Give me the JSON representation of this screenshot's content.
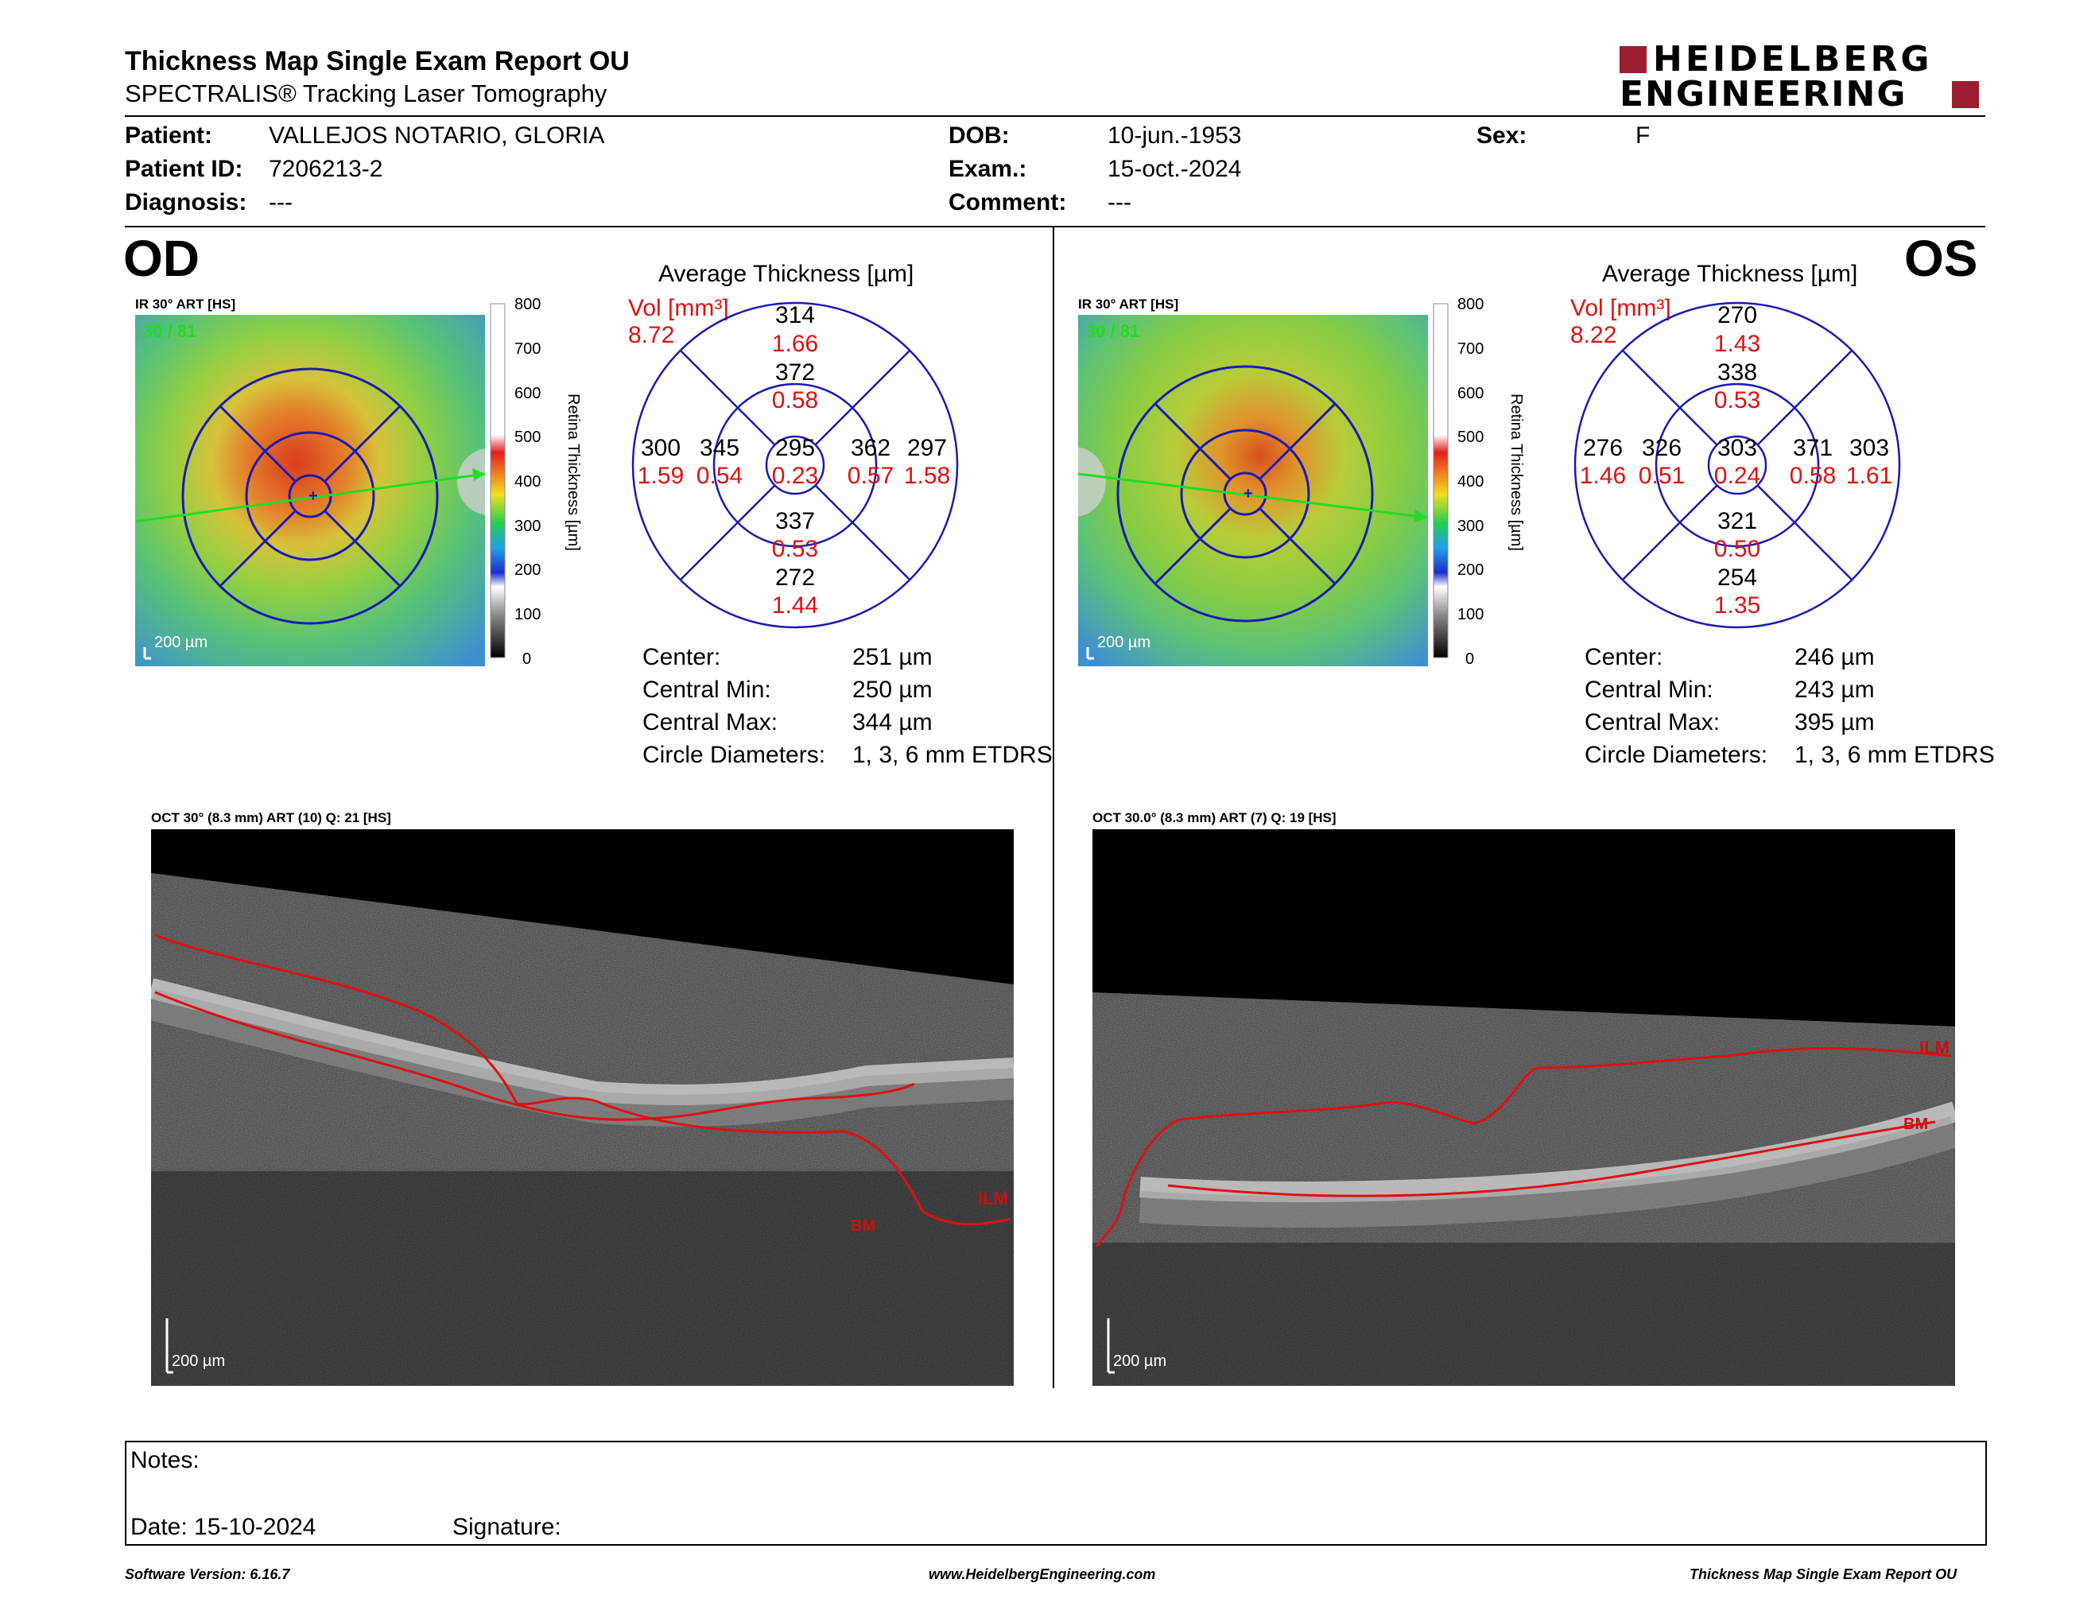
{
  "header": {
    "title": "Thickness Map Single Exam Report OU",
    "subtitle": "SPECTRALIS® Tracking Laser Tomography",
    "logo_line1": "HEIDELBERG",
    "logo_line2": "ENGINEERING",
    "logo_color": "#9b1c2e"
  },
  "patient": {
    "patient_label": "Patient:",
    "patient_value": "VALLEJOS NOTARIO, GLORIA",
    "id_label": "Patient ID:",
    "id_value": "7206213-2",
    "diagnosis_label": "Diagnosis:",
    "diagnosis_value": "---",
    "dob_label": "DOB:",
    "dob_value": "10-jun.-1953",
    "exam_label": "Exam.:",
    "exam_value": "15-oct.-2024",
    "comment_label": "Comment:",
    "comment_value": "---",
    "sex_label": "Sex:",
    "sex_value": "F"
  },
  "od": {
    "eye_label": "OD",
    "ir_label": "IR 30° ART [HS]",
    "ir_overlay": "30 / 81",
    "scale_label": "200 µm",
    "colorbar_ticks": [
      "800",
      "700",
      "600",
      "500",
      "400",
      "300",
      "200",
      "100",
      "0"
    ],
    "colorbar_title": "Retina  Thickness [µm]",
    "avg_title": "Average Thickness [µm]",
    "vol_label": "Vol [mm³]",
    "vol_value": "8.72",
    "grid": {
      "outer_top": "314",
      "outer_top_vol": "1.66",
      "inner_top": "372",
      "inner_top_vol": "0.58",
      "outer_left": "300",
      "outer_left_vol": "1.59",
      "inner_left": "345",
      "inner_left_vol": "0.54",
      "center": "295",
      "center_vol": "0.23",
      "inner_right": "362",
      "inner_right_vol": "0.57",
      "outer_right": "297",
      "outer_right_vol": "1.58",
      "inner_bottom": "337",
      "inner_bottom_vol": "0.53",
      "outer_bottom": "272",
      "outer_bottom_vol": "1.44"
    },
    "stats": {
      "center_label": "Center:",
      "center_value": "251 µm",
      "min_label": "Central Min:",
      "min_value": "250 µm",
      "max_label": "Central Max:",
      "max_value": "344 µm",
      "circ_label": "Circle Diameters:",
      "circ_value": "1, 3, 6 mm ETDRS"
    },
    "oct_label": "OCT 30° (8.3 mm) ART (10) Q: 21 [HS]",
    "oct_scale": "200 µm",
    "ilm_label": "ILM",
    "bm_label": "BM"
  },
  "os": {
    "eye_label": "OS",
    "ir_label": "IR 30° ART [HS]",
    "ir_overlay": "30 / 81",
    "scale_label": "200 µm",
    "colorbar_ticks": [
      "800",
      "700",
      "600",
      "500",
      "400",
      "300",
      "200",
      "100",
      "0"
    ],
    "colorbar_title": "Retina  Thickness [µm]",
    "avg_title": "Average Thickness [µm]",
    "vol_label": "Vol [mm³]",
    "vol_value": "8.22",
    "grid": {
      "outer_top": "270",
      "outer_top_vol": "1.43",
      "inner_top": "338",
      "inner_top_vol": "0.53",
      "outer_left": "276",
      "outer_left_vol": "1.46",
      "inner_left": "326",
      "inner_left_vol": "0.51",
      "center": "303",
      "center_vol": "0.24",
      "inner_right": "371",
      "inner_right_vol": "0.58",
      "outer_right": "303",
      "outer_right_vol": "1.61",
      "inner_bottom": "321",
      "inner_bottom_vol": "0.50",
      "outer_bottom": "254",
      "outer_bottom_vol": "1.35"
    },
    "stats": {
      "center_label": "Center:",
      "center_value": "246 µm",
      "min_label": "Central Min:",
      "min_value": "243 µm",
      "max_label": "Central Max:",
      "max_value": "395 µm",
      "circ_label": "Circle Diameters:",
      "circ_value": "1, 3, 6 mm ETDRS"
    },
    "oct_label": "OCT 30.0° (8.3 mm) ART (7) Q: 19 [HS]",
    "oct_scale": "200 µm",
    "ilm_label": "ILM",
    "bm_label": "BM"
  },
  "notes": {
    "notes_label": "Notes:",
    "date_label": "Date: 15-10-2024",
    "signature_label": "Signature:"
  },
  "footer": {
    "software": "Software Version: 6.16.7",
    "website": "www.HeidelbergEngineering.com",
    "report": "Thickness Map Single Exam Report OU"
  },
  "colors": {
    "grid_blue": "#1a1ab4",
    "value_red": "#e01010",
    "trace_red": "#e01010",
    "scan_arrow": "#22dd22"
  }
}
